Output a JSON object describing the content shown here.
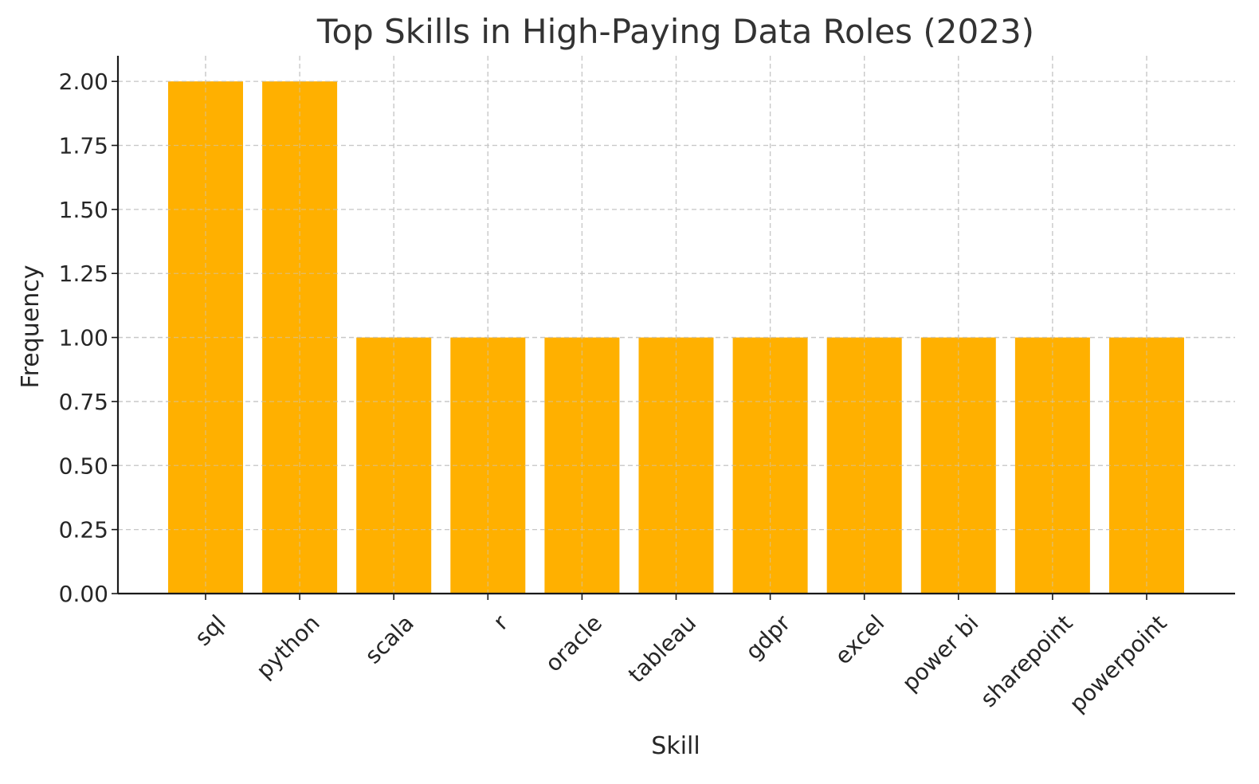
{
  "chart_data": {
    "type": "bar",
    "title": "Top Skills in High-Paying Data Roles (2023)",
    "xlabel": "Skill",
    "ylabel": "Frequency",
    "categories": [
      "sql",
      "python",
      "scala",
      "r",
      "oracle",
      "tableau",
      "gdpr",
      "excel",
      "power bi",
      "sharepoint",
      "powerpoint"
    ],
    "values": [
      2,
      2,
      1,
      1,
      1,
      1,
      1,
      1,
      1,
      1,
      1
    ],
    "ylim": [
      0,
      2.1
    ],
    "yticks": [
      "0.00",
      "0.25",
      "0.50",
      "0.75",
      "1.00",
      "1.25",
      "1.50",
      "1.75",
      "2.00"
    ],
    "bar_color": "#FFB000",
    "grid": true,
    "legend": "none"
  }
}
